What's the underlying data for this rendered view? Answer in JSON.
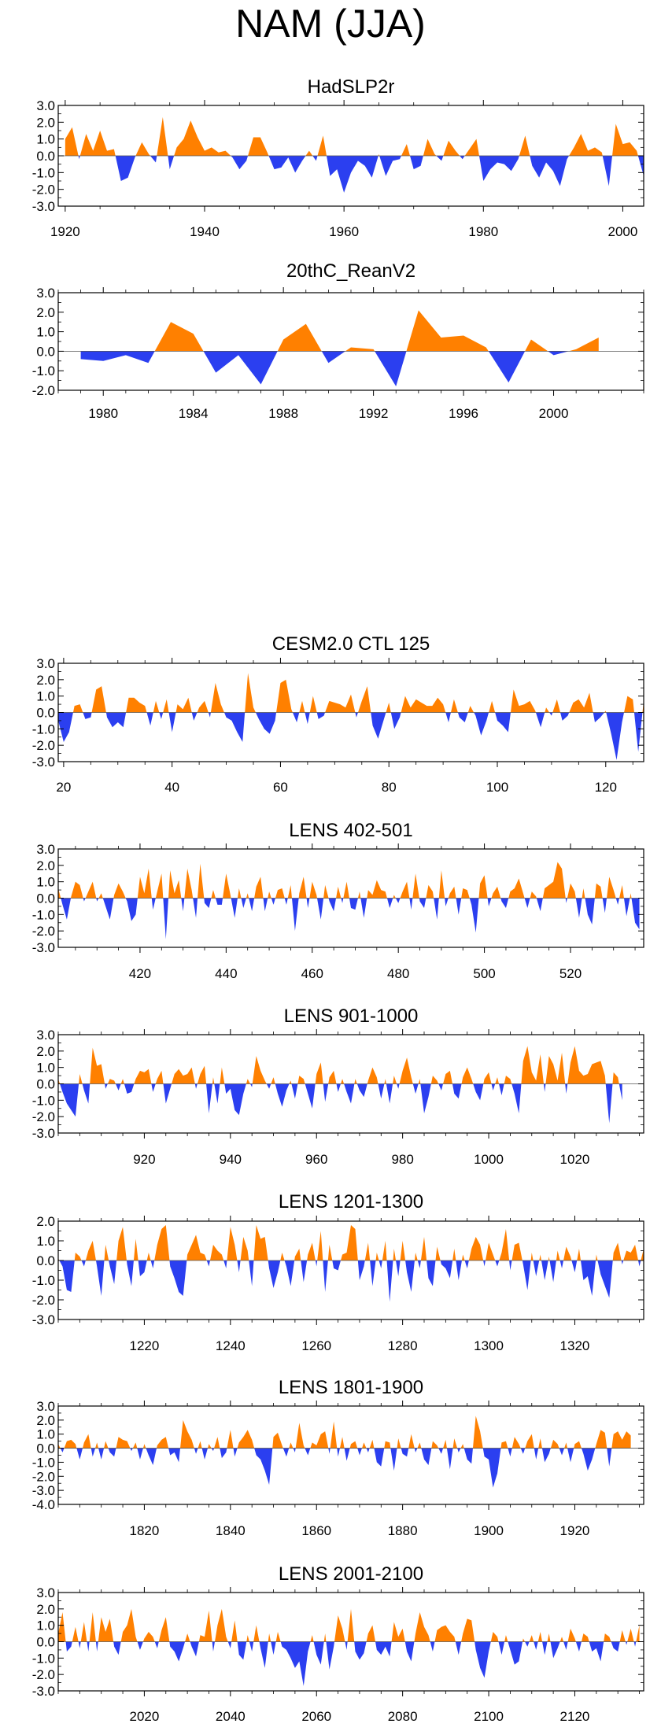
{
  "title": "NAM (JJA)",
  "colors": {
    "positive": "#ff8000",
    "negative": "#2b3ff0",
    "axis": "#000000"
  },
  "chart_data": [
    {
      "type": "area",
      "title": "HadSLP2r",
      "ylim": [
        -3.0,
        3.0
      ],
      "yticks": [
        3.0,
        2.0,
        1.0,
        0.0,
        -1.0,
        -2.0,
        -3.0
      ],
      "ytick_labels": [
        "3.0",
        "2.0",
        "1.0",
        "0.0",
        "-1.0",
        "-2.0",
        "-3.0"
      ],
      "xlim": [
        1919,
        2003
      ],
      "xticks": [
        1920,
        1940,
        1960,
        1980,
        2000
      ],
      "xtick_labels": [
        "1920",
        "1940",
        "1960",
        "1980",
        "2000"
      ],
      "x_start": 1920,
      "values": [
        1.0,
        1.7,
        -0.2,
        1.3,
        0.3,
        1.5,
        0.3,
        0.4,
        -1.5,
        -1.3,
        -0.1,
        0.8,
        0.1,
        -0.4,
        2.3,
        -0.8,
        0.5,
        1.0,
        2.1,
        1.1,
        0.3,
        0.5,
        0.2,
        0.3,
        -0.1,
        -0.8,
        -0.3,
        1.1,
        1.1,
        0.2,
        -0.8,
        -0.7,
        -0.1,
        -1.0,
        -0.3,
        0.3,
        -0.3,
        1.2,
        -1.2,
        -0.8,
        -2.2,
        -1.0,
        -0.3,
        -0.6,
        -1.3,
        0.1,
        -1.2,
        -0.3,
        -0.2,
        0.7,
        -0.8,
        -0.6,
        1.0,
        0.1,
        -0.3,
        0.9,
        0.3,
        -0.2,
        0.4,
        1.0,
        -1.5,
        -0.8,
        -0.4,
        -0.5,
        -0.9,
        -0.2,
        1.2,
        -0.6,
        -1.3,
        -0.4,
        -0.9,
        -1.8,
        -0.2,
        0.5,
        1.3,
        0.3,
        0.5,
        0.2,
        -1.8,
        1.9,
        0.7,
        0.8,
        0.3,
        -1.2
      ]
    },
    {
      "type": "area",
      "title": "20thC_ReanV2",
      "ylim": [
        -2.0,
        3.0
      ],
      "yticks": [
        3.0,
        2.0,
        1.0,
        0.0,
        -1.0,
        -2.0
      ],
      "ytick_labels": [
        "3.0",
        "2.0",
        "1.0",
        "0.0",
        "-1.0",
        "-2.0"
      ],
      "xlim": [
        1978,
        2004
      ],
      "xticks": [
        1980,
        1984,
        1988,
        1992,
        1996,
        2000
      ],
      "xtick_labels": [
        "1980",
        "1984",
        "1988",
        "1992",
        "1996",
        "2000"
      ],
      "x_start": 1979,
      "values": [
        -0.4,
        -0.5,
        -0.2,
        -0.6,
        1.5,
        0.9,
        -1.1,
        -0.2,
        -1.7,
        0.6,
        1.4,
        -0.6,
        0.2,
        0.1,
        -1.8,
        2.1,
        0.7,
        0.8,
        0.2,
        -1.6,
        0.6,
        -0.2,
        0.1,
        0.7
      ]
    },
    {
      "type": "area",
      "title": "CESM2.0 CTL 125",
      "ylim": [
        -3.0,
        3.0
      ],
      "yticks": [
        3.0,
        2.0,
        1.0,
        0.0,
        -1.0,
        -2.0,
        -3.0
      ],
      "ytick_labels": [
        "3.0",
        "2.0",
        "1.0",
        "0.0",
        "-1.0",
        "-2.0",
        "-3.0"
      ],
      "xlim": [
        19,
        127
      ],
      "xticks": [
        20,
        40,
        60,
        80,
        100,
        120
      ],
      "xtick_labels": [
        "20",
        "40",
        "60",
        "80",
        "100",
        "120"
      ],
      "x_start": 19,
      "values": [
        -0.5,
        -1.8,
        -1.2,
        0.4,
        0.5,
        -0.4,
        -0.3,
        1.4,
        1.6,
        -0.3,
        -0.9,
        -0.6,
        -0.9,
        0.9,
        0.9,
        0.6,
        0.4,
        -0.8,
        0.7,
        -0.4,
        0.8,
        -1.2,
        0.5,
        0.2,
        0.9,
        -0.5,
        0.3,
        0.7,
        -0.3,
        1.8,
        0.5,
        -0.3,
        -0.5,
        -1.2,
        -1.8,
        2.4,
        0.3,
        -0.4,
        -1.0,
        -1.3,
        -0.5,
        1.8,
        2.0,
        0.2,
        -0.6,
        0.7,
        -0.7,
        1.0,
        -0.4,
        -0.2,
        0.7,
        0.6,
        0.5,
        0.3,
        1.1,
        -0.3,
        0.7,
        1.6,
        -0.8,
        -1.6,
        -0.5,
        0.6,
        -1.0,
        -0.3,
        1.0,
        0.3,
        0.8,
        0.6,
        0.4,
        0.4,
        0.9,
        0.5,
        -0.6,
        0.8,
        -0.3,
        -0.6,
        0.4,
        -0.2,
        -1.4,
        -0.5,
        0.7,
        -0.5,
        -0.8,
        -1.2,
        1.4,
        0.4,
        0.5,
        0.7,
        0.1,
        -0.9,
        0.3,
        -0.2,
        0.8,
        -0.5,
        -0.2,
        0.6,
        0.8,
        0.3,
        1.2,
        -0.6,
        -0.3,
        0.1,
        -1.3,
        -2.9,
        -0.6,
        1.0,
        0.8,
        -2.4,
        0.7
      ]
    },
    {
      "type": "area",
      "title": "LENS 402-501",
      "ylim": [
        -3.0,
        3.0
      ],
      "yticks": [
        3.0,
        2.0,
        1.0,
        0.0,
        -1.0,
        -2.0,
        -3.0
      ],
      "ytick_labels": [
        "3.0",
        "2.0",
        "1.0",
        "0.0",
        "-1.0",
        "-2.0",
        "-3.0"
      ],
      "xlim": [
        401,
        537
      ],
      "xticks": [
        420,
        440,
        460,
        480,
        500,
        520
      ],
      "xtick_labels": [
        "420",
        "440",
        "460",
        "480",
        "500",
        "520"
      ],
      "x_start": 401,
      "values": [
        0.6,
        -0.4,
        -1.3,
        0.1,
        1.0,
        0.8,
        -0.2,
        0.4,
        1.0,
        -0.2,
        0.3,
        -0.5,
        -1.3,
        0.2,
        0.9,
        0.4,
        -0.2,
        -1.4,
        -1.0,
        1.3,
        0.3,
        1.8,
        -0.7,
        0.4,
        1.5,
        -2.5,
        1.7,
        0.3,
        1.1,
        -0.8,
        1.8,
        0.5,
        -1.2,
        2.1,
        -0.3,
        -0.6,
        0.5,
        -0.4,
        -0.4,
        1.5,
        0.2,
        -1.2,
        0.6,
        -0.6,
        0.3,
        -0.8,
        0.7,
        1.3,
        -0.8,
        0.4,
        -0.4,
        0.5,
        0.6,
        -0.4,
        0.8,
        -2.0,
        0.3,
        1.3,
        -0.6,
        1.0,
        0.2,
        -1.3,
        0.8,
        -0.2,
        -0.8,
        0.7,
        -0.3,
        1.0,
        -0.6,
        -0.7,
        0.4,
        -1.2,
        0.5,
        0.2,
        1.1,
        0.5,
        0.4,
        -0.6,
        0.2,
        -0.3,
        0.4,
        1.0,
        -0.7,
        1.5,
        -0.2,
        -0.6,
        0.8,
        0.4,
        -1.3,
        1.7,
        -0.5,
        0.3,
        0.7,
        -1.0,
        0.6,
        0.5,
        -0.4,
        -2.1,
        0.9,
        1.4,
        -0.5,
        0.3,
        0.7,
        -0.2,
        -0.6,
        0.4,
        0.6,
        1.2,
        0.3,
        -0.6,
        0.4,
        0.1,
        -0.8,
        0.6,
        0.8,
        1.0,
        2.2,
        1.8,
        -0.3,
        0.9,
        0.4,
        -1.2,
        0.6,
        -1.0,
        -1.6,
        0.9,
        0.7,
        -0.9,
        1.3,
        0.5,
        -0.4,
        0.8,
        -1.1,
        0.3,
        -1.5,
        -1.9
      ]
    },
    {
      "type": "area",
      "title": "LENS 901-1000",
      "ylim": [
        -3.0,
        3.0
      ],
      "yticks": [
        3.0,
        2.0,
        1.0,
        0.0,
        -1.0,
        -2.0,
        -3.0
      ],
      "ytick_labels": [
        "3.0",
        "2.0",
        "1.0",
        "0.0",
        "-1.0",
        "-2.0",
        "-3.0"
      ],
      "xlim": [
        900,
        1036
      ],
      "xticks": [
        920,
        940,
        960,
        980,
        1000,
        1020
      ],
      "xtick_labels": [
        "920",
        "940",
        "960",
        "980",
        "1000",
        "1020"
      ],
      "x_start": 900,
      "values": [
        0.3,
        -0.5,
        -1.2,
        -1.6,
        -2.0,
        0.6,
        -0.4,
        -1.2,
        2.2,
        1.1,
        1.2,
        -0.3,
        0.3,
        0.2,
        -0.4,
        0.3,
        -0.6,
        -0.5,
        0.3,
        0.8,
        0.7,
        0.9,
        -0.5,
        0.3,
        0.8,
        -1.2,
        -0.3,
        0.6,
        0.9,
        0.5,
        0.6,
        1.0,
        -0.3,
        0.6,
        1.1,
        -1.8,
        0.4,
        -1.2,
        1.0,
        -0.6,
        -0.3,
        -1.6,
        -1.9,
        -0.6,
        0.3,
        -0.2,
        1.7,
        0.8,
        0.2,
        -0.3,
        0.4,
        -0.6,
        -1.4,
        -0.4,
        0.2,
        -0.9,
        0.5,
        0.3,
        -0.6,
        -1.5,
        0.6,
        1.3,
        -1.1,
        0.4,
        0.8,
        -0.5,
        0.3,
        -0.5,
        -1.2,
        0.3,
        -0.4,
        -0.8,
        0.2,
        1.0,
        0.4,
        -0.9,
        0.3,
        -1.2,
        0.5,
        -0.3,
        0.8,
        1.6,
        0.4,
        -0.6,
        0.3,
        -1.8,
        -0.8,
        0.5,
        0.2,
        -0.4,
        0.6,
        0.8,
        -0.6,
        -0.9,
        0.4,
        1.0,
        0.3,
        -0.5,
        -1.0,
        0.3,
        0.7,
        -0.4,
        0.4,
        -0.7,
        0.5,
        0.3,
        -0.6,
        -1.8,
        1.4,
        2.3,
        0.7,
        0.2,
        1.8,
        -0.5,
        1.7,
        1.2,
        0.2,
        1.9,
        -0.6,
        1.3,
        2.3,
        0.8,
        0.5,
        0.6,
        1.2,
        1.3,
        1.4,
        0.5,
        -2.4,
        0.7,
        0.4,
        -1.0
      ]
    },
    {
      "type": "area",
      "title": "LENS 1201-1300",
      "ylim": [
        -3.0,
        2.0
      ],
      "yticks": [
        2.0,
        1.0,
        0.0,
        -1.0,
        -2.0,
        -3.0
      ],
      "ytick_labels": [
        "2.0",
        "1.0",
        "0.0",
        "-1.0",
        "-2.0",
        "-3.0"
      ],
      "xlim": [
        1200,
        1336
      ],
      "xticks": [
        1220,
        1240,
        1260,
        1280,
        1300,
        1320
      ],
      "xtick_labels": [
        "1220",
        "1240",
        "1260",
        "1280",
        "1300",
        "1320"
      ],
      "x_start": 1200,
      "values": [
        0.1,
        -0.3,
        -1.5,
        -1.6,
        0.4,
        0.2,
        -0.3,
        0.5,
        1.0,
        -0.3,
        -1.8,
        0.8,
        -0.3,
        -1.2,
        1.0,
        1.7,
        -0.2,
        -1.3,
        1.1,
        -0.8,
        -0.6,
        0.4,
        -0.4,
        0.8,
        1.6,
        1.8,
        -0.3,
        -0.9,
        -1.6,
        -1.8,
        0.3,
        0.8,
        1.3,
        0.4,
        0.3,
        -0.3,
        0.8,
        0.5,
        0.3,
        -0.4,
        1.7,
        0.8,
        -0.6,
        1.2,
        0.5,
        -1.3,
        1.8,
        1.1,
        1.2,
        -0.4,
        -1.4,
        -0.6,
        0.4,
        -0.3,
        -1.3,
        0.2,
        0.6,
        -1.1,
        0.3,
        0.9,
        -0.3,
        1.5,
        -1.6,
        0.8,
        -0.4,
        -0.5,
        0.3,
        0.4,
        1.8,
        1.6,
        -1.0,
        -0.3,
        0.9,
        -1.3,
        0.4,
        -0.4,
        1.0,
        -2.1,
        0.6,
        -0.8,
        1.0,
        -0.6,
        -1.6,
        0.4,
        -0.4,
        1.2,
        -0.9,
        -1.3,
        0.7,
        -0.2,
        -0.4,
        -0.9,
        0.6,
        -1.0,
        0.3,
        -0.4,
        0.6,
        1.2,
        0.8,
        -0.3,
        0.9,
        0.3,
        -0.3,
        0.4,
        1.6,
        -0.5,
        0.8,
        0.9,
        -0.2,
        -1.5,
        0.4,
        -0.8,
        0.3,
        -1.0,
        0.2,
        -1.1,
        0.5,
        -0.4,
        0.7,
        0.2,
        -0.6,
        0.6,
        -1.0,
        -0.8,
        -1.8,
        0.3,
        -0.7,
        -1.3,
        -1.9,
        0.4,
        0.9,
        -0.2,
        0.5,
        0.4,
        0.8,
        -0.3,
        0.6
      ]
    },
    {
      "type": "area",
      "title": "LENS 1801-1900",
      "ylim": [
        -4.0,
        3.0
      ],
      "yticks": [
        3.0,
        2.0,
        1.0,
        0.0,
        -1.0,
        -2.0,
        -3.0,
        -4.0
      ],
      "ytick_labels": [
        "3.0",
        "2.0",
        "1.0",
        "0.0",
        "-1.0",
        "-2.0",
        "-3.0",
        "-4.0"
      ],
      "xlim": [
        1800,
        1936
      ],
      "xticks": [
        1820,
        1840,
        1860,
        1880,
        1900,
        1920
      ],
      "xtick_labels": [
        "1820",
        "1840",
        "1860",
        "1880",
        "1900",
        "1920"
      ],
      "x_start": 1800,
      "values": [
        0.3,
        -0.3,
        0.5,
        0.6,
        0.3,
        -0.8,
        0.4,
        1.0,
        -0.6,
        0.4,
        -0.8,
        0.5,
        -0.3,
        -0.6,
        0.8,
        0.6,
        0.5,
        -0.2,
        0.4,
        -0.8,
        0.3,
        -0.5,
        -1.2,
        0.2,
        0.6,
        0.8,
        -0.5,
        -0.3,
        -1.0,
        2.0,
        1.2,
        0.6,
        -0.4,
        0.5,
        -0.8,
        0.3,
        -0.2,
        0.8,
        -0.7,
        -0.3,
        1.3,
        -0.6,
        0.4,
        0.8,
        1.3,
        0.6,
        -0.5,
        -0.8,
        -1.6,
        -2.6,
        0.8,
        1.1,
        0.2,
        -0.6,
        0.4,
        -0.3,
        1.8,
        0.2,
        -0.5,
        0.4,
        0.2,
        1.0,
        1.2,
        -0.4,
        1.9,
        -0.6,
        0.8,
        -0.9,
        0.3,
        0.5,
        -0.5,
        0.4,
        -0.3,
        0.6,
        -1.0,
        -1.3,
        0.5,
        0.4,
        -1.6,
        0.7,
        -0.4,
        -0.6,
        1.0,
        -0.3,
        0.4,
        -0.8,
        -1.2,
        0.5,
        0.2,
        -0.4,
        0.6,
        -1.5,
        0.7,
        -0.3,
        0.3,
        -0.8,
        -1.1,
        2.3,
        1.2,
        -0.6,
        -0.8,
        -2.8,
        -1.8,
        0.4,
        0.5,
        -0.6,
        0.8,
        0.3,
        -0.4,
        0.5,
        1.0,
        -0.8,
        0.7,
        -1.0,
        -0.4,
        0.6,
        0.3,
        -0.5,
        0.4,
        -1.0,
        0.3,
        0.5,
        -0.4,
        -1.6,
        -0.8,
        0.3,
        1.3,
        1.1,
        -1.3,
        1.0,
        1.2,
        0.6,
        1.2,
        0.9
      ]
    },
    {
      "type": "area",
      "title": "LENS 2001-2100",
      "ylim": [
        -3.0,
        3.0
      ],
      "yticks": [
        3.0,
        2.0,
        1.0,
        0.0,
        -1.0,
        -2.0,
        -3.0
      ],
      "ytick_labels": [
        "3.0",
        "2.0",
        "1.0",
        "0.0",
        "-1.0",
        "-2.0",
        "-3.0"
      ],
      "xlim": [
        2000,
        2136
      ],
      "xticks": [
        2020,
        2040,
        2060,
        2080,
        2100,
        2120
      ],
      "xtick_labels": [
        "2020",
        "2040",
        "2060",
        "2080",
        "2100",
        "2120"
      ],
      "x_start": 2000,
      "values": [
        0.5,
        1.8,
        -0.6,
        -0.3,
        0.9,
        -0.4,
        1.2,
        -0.6,
        1.8,
        -0.6,
        1.5,
        0.6,
        1.4,
        -0.3,
        -0.8,
        0.6,
        1.0,
        2.0,
        0.3,
        -0.5,
        0.2,
        0.6,
        0.3,
        -0.4,
        0.7,
        1.5,
        -0.3,
        -0.6,
        -1.2,
        -0.4,
        0.5,
        -0.3,
        -0.9,
        0.4,
        0.3,
        1.9,
        -0.6,
        1.0,
        2.0,
        0.3,
        -0.4,
        1.3,
        -0.8,
        -1.1,
        0.4,
        -0.6,
        1.0,
        -0.4,
        -1.6,
        0.5,
        -0.8,
        0.6,
        -0.3,
        -0.5,
        -1.0,
        -1.6,
        -1.2,
        -2.7,
        -0.6,
        0.4,
        -0.8,
        -1.4,
        0.5,
        -1.7,
        -0.3,
        1.6,
        0.8,
        -0.5,
        2.0,
        -0.6,
        -1.1,
        -0.7,
        0.5,
        1.0,
        -0.5,
        -0.8,
        -0.3,
        -0.9,
        1.2,
        0.3,
        0.8,
        -0.6,
        -1.2,
        0.5,
        1.8,
        0.9,
        0.4,
        -0.6,
        0.7,
        0.9,
        1.0,
        0.6,
        0.3,
        -0.8,
        0.5,
        1.4,
        1.3,
        -0.5,
        -1.6,
        -2.2,
        -0.6,
        0.6,
        0.3,
        -0.8,
        0.4,
        -0.5,
        -1.4,
        -1.2,
        0.2,
        -0.3,
        0.4,
        -0.5,
        0.6,
        -0.8,
        0.5,
        -1.0,
        -0.4,
        0.3,
        -0.5,
        0.8,
        0.2,
        -0.6,
        0.5,
        0.3,
        -0.6,
        -0.4,
        -1.2,
        0.5,
        0.3,
        -0.4,
        -0.6,
        0.7,
        -0.2,
        0.8,
        -0.3,
        1.0
      ]
    }
  ]
}
